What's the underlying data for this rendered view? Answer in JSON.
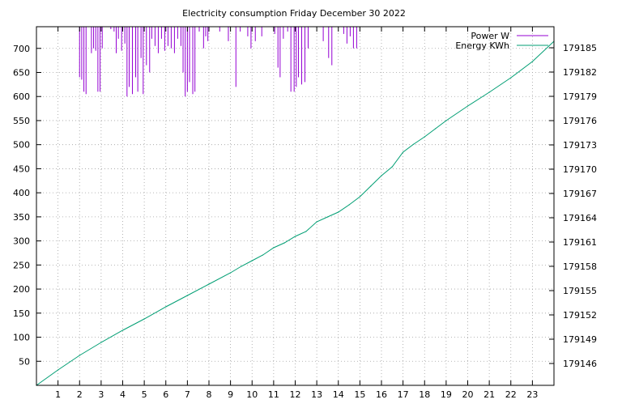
{
  "chart_data": {
    "type": "line",
    "title": "Electricity consumption Friday December 30 2022",
    "x_ticks": [
      1,
      2,
      3,
      4,
      5,
      6,
      7,
      8,
      9,
      10,
      11,
      12,
      13,
      14,
      15,
      16,
      17,
      18,
      19,
      20,
      21,
      22,
      23
    ],
    "xlim": [
      0,
      24
    ],
    "y_ticks": [
      50,
      100,
      150,
      200,
      250,
      300,
      350,
      400,
      450,
      500,
      550,
      600,
      650,
      700
    ],
    "ylim": [
      0,
      745
    ],
    "y2_ticks": [
      179146,
      179149,
      179152,
      179155,
      179158,
      179161,
      179164,
      179167,
      179170,
      179173,
      179176,
      179179,
      179182,
      179185
    ],
    "y2lim": [
      179143.3,
      179187.6
    ],
    "grid": true,
    "legend_position": "top-right",
    "series": [
      {
        "name": "Power W",
        "axis": "y",
        "color": "#9400d3",
        "style": "impulses",
        "x": [
          2.0,
          2.1,
          2.2,
          2.3,
          2.55,
          2.65,
          2.75,
          2.85,
          2.95,
          3.05,
          3.45,
          3.6,
          3.7,
          3.8,
          3.95,
          4.1,
          4.2,
          4.3,
          4.45,
          4.6,
          4.7,
          4.85,
          4.95,
          5.1,
          5.25,
          5.35,
          5.5,
          5.65,
          5.8,
          5.95,
          6.1,
          6.25,
          6.4,
          6.55,
          6.7,
          6.8,
          6.9,
          7.0,
          7.1,
          7.25,
          7.35,
          7.55,
          7.75,
          7.85,
          7.95,
          8.5,
          8.9,
          9.25,
          9.45,
          9.8,
          9.95,
          10.15,
          10.45,
          11.05,
          11.2,
          11.3,
          11.45,
          11.65,
          11.8,
          11.95,
          12.05,
          12.15,
          12.3,
          12.45,
          12.6,
          13.3,
          13.55,
          13.7,
          14.25,
          14.4,
          14.55,
          14.7,
          14.85
        ],
        "values": [
          640,
          635,
          610,
          605,
          690,
          700,
          695,
          610,
          610,
          700,
          740,
          735,
          690,
          720,
          695,
          710,
          600,
          620,
          605,
          640,
          610,
          680,
          605,
          665,
          650,
          720,
          705,
          690,
          720,
          695,
          705,
          700,
          690,
          720,
          705,
          650,
          600,
          610,
          630,
          605,
          610,
          735,
          700,
          725,
          715,
          735,
          715,
          620,
          735,
          725,
          700,
          715,
          725,
          730,
          660,
          640,
          720,
          735,
          610,
          610,
          620,
          640,
          625,
          630,
          700,
          715,
          680,
          665,
          730,
          710,
          725,
          700,
          700
        ]
      },
      {
        "name": "Energy KWh",
        "axis": "y2",
        "color": "#009e73",
        "style": "line",
        "x": [
          0,
          1,
          2,
          3,
          4,
          5,
          6,
          7,
          8,
          9,
          9.5,
          10,
          10.5,
          11,
          11.5,
          12,
          12.5,
          13,
          13.5,
          14,
          14.5,
          15,
          15.5,
          16,
          16.5,
          17,
          17.5,
          18,
          18.5,
          19,
          20,
          21,
          22,
          23,
          24
        ],
        "values": [
          179143.3,
          179145.2,
          179147.0,
          179148.6,
          179150.1,
          179151.5,
          179153.0,
          179154.4,
          179155.8,
          179157.2,
          179158.0,
          179158.7,
          179159.4,
          179160.3,
          179160.9,
          179161.7,
          179162.3,
          179163.5,
          179164.1,
          179164.7,
          179165.6,
          179166.6,
          179167.9,
          179169.2,
          179170.3,
          179172.1,
          179173.1,
          179174.0,
          179175.0,
          179176.0,
          179177.8,
          179179.5,
          179181.3,
          179183.3,
          179185.8
        ]
      }
    ]
  }
}
